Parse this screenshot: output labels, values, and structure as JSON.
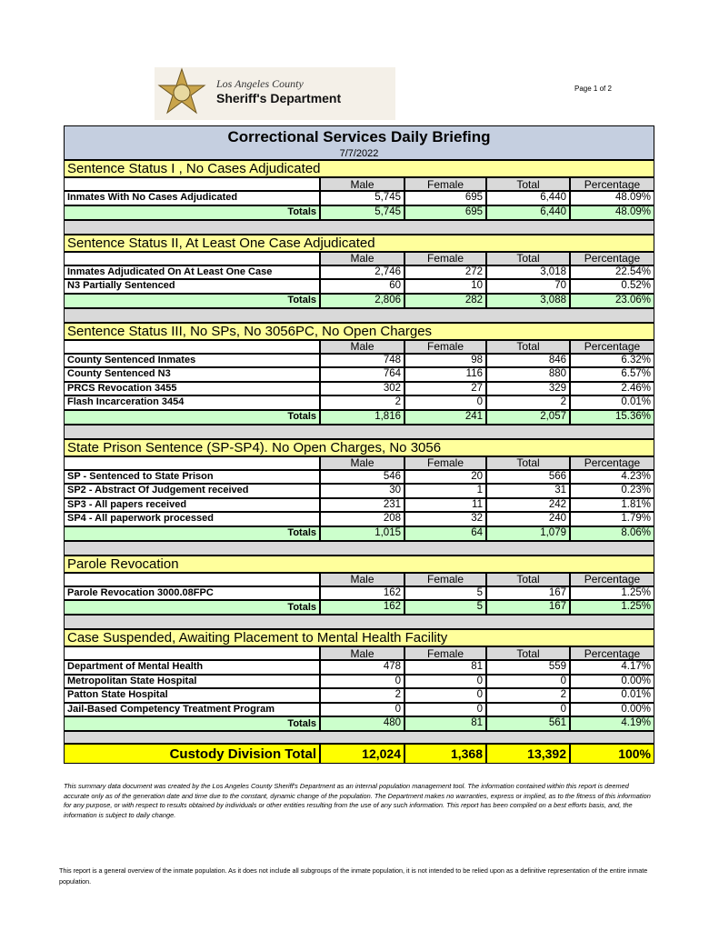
{
  "header": {
    "agency_line1": "Los Angeles County",
    "agency_line2": "Sheriff's Department",
    "page": "Page 1 of 2",
    "title": "Correctional Services Daily Briefing",
    "date": "7/7/2022"
  },
  "columns": [
    "Male",
    "Female",
    "Total",
    "Percentage"
  ],
  "sections": [
    {
      "title": "Sentence Status I , No Cases Adjudicated",
      "rows": [
        [
          "Inmates With No Cases Adjudicated",
          "5,745",
          "695",
          "6,440",
          "48.09%"
        ]
      ],
      "totals": [
        "Totals",
        "5,745",
        "695",
        "6,440",
        "48.09%"
      ]
    },
    {
      "title": "Sentence Status II, At Least One Case Adjudicated",
      "rows": [
        [
          "Inmates Adjudicated On At Least One Case",
          "2,746",
          "272",
          "3,018",
          "22.54%"
        ],
        [
          "N3 Partially Sentenced",
          "60",
          "10",
          "70",
          "0.52%"
        ]
      ],
      "totals": [
        "Totals",
        "2,806",
        "282",
        "3,088",
        "23.06%"
      ]
    },
    {
      "title": "Sentence Status III, No SPs, No 3056PC, No Open Charges",
      "rows": [
        [
          "County Sentenced Inmates",
          "748",
          "98",
          "846",
          "6.32%"
        ],
        [
          "County Sentenced N3",
          "764",
          "116",
          "880",
          "6.57%"
        ],
        [
          "PRCS Revocation 3455",
          "302",
          "27",
          "329",
          "2.46%"
        ],
        [
          "Flash Incarceration 3454",
          "2",
          "0",
          "2",
          "0.01%"
        ]
      ],
      "totals": [
        "Totals",
        "1,816",
        "241",
        "2,057",
        "15.36%"
      ]
    },
    {
      "title": "State Prison Sentence (SP-SP4). No Open Charges, No 3056",
      "rows": [
        [
          "SP - Sentenced to State Prison",
          "546",
          "20",
          "566",
          "4.23%"
        ],
        [
          "SP2 - Abstract Of Judgement received",
          "30",
          "1",
          "31",
          "0.23%"
        ],
        [
          "SP3 - All papers received",
          "231",
          "11",
          "242",
          "1.81%"
        ],
        [
          "SP4 - All paperwork processed",
          "208",
          "32",
          "240",
          "1.79%"
        ]
      ],
      "totals": [
        "Totals",
        "1,015",
        "64",
        "1,079",
        "8.06%"
      ]
    },
    {
      "title": "Parole Revocation",
      "rows": [
        [
          "Parole Revocation 3000.08FPC",
          "162",
          "5",
          "167",
          "1.25%"
        ]
      ],
      "totals": [
        "Totals",
        "162",
        "5",
        "167",
        "1.25%"
      ]
    },
    {
      "title": "Case Suspended, Awaiting Placement to Mental Health Facility",
      "rows": [
        [
          "Department of Mental Health",
          "478",
          "81",
          "559",
          "4.17%"
        ],
        [
          "Metropolitan State Hospital",
          "0",
          "0",
          "0",
          "0.00%"
        ],
        [
          "Patton State Hospital",
          "2",
          "0",
          "2",
          "0.01%"
        ],
        [
          "Jail-Based Competency Treatment Program",
          "0",
          "0",
          "0",
          "0.00%"
        ]
      ],
      "totals": [
        "Totals",
        "480",
        "81",
        "561",
        "4.19%"
      ]
    }
  ],
  "grand_total": [
    "Custody Division Total",
    "12,024",
    "1,368",
    "13,392",
    "100%"
  ],
  "disclaimer": "This summary data document was created by the Los Angeles County Sheriff's Department as an internal population management tool.  The information contained within this report is deemed accurate only as of the generation date and time due to the constant, dynamic change of the population.  The Department makes no warranties, express or implied, as to the fitness of this information for any purpose, or with respect to results obtained by individuals or other entities resulting from the use of any such information.  This report has been compiled on a best efforts basis, and, the information is subject to daily change.",
  "footer": "This report is a general overview of the inmate population.  As it does not include all subgroups of the inmate population, it is not intended to be relied upon as a definitive representation of the entire inmate population."
}
